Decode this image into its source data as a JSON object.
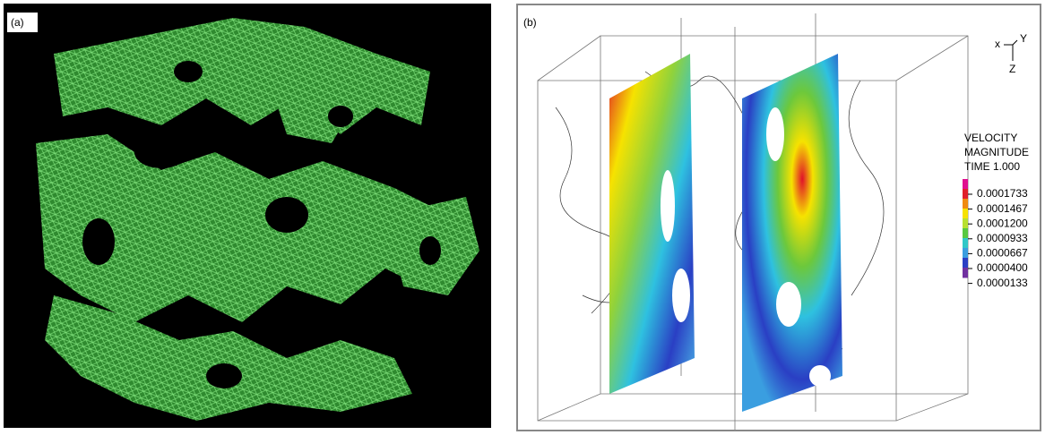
{
  "panel_a": {
    "label": "(a)"
  },
  "panel_b": {
    "label": "(b)",
    "axes_triad": {
      "x": "x",
      "y": "Y",
      "z": "Z"
    },
    "legend": {
      "title": [
        "VELOCITY",
        "MAGNITUDE",
        "TIME 1.000"
      ],
      "labels": [
        "0.0001733",
        "0.0001467",
        "0.0001200",
        "0.0000933",
        "0.0000667",
        "0.0000400",
        "0.0000133"
      ]
    }
  }
}
